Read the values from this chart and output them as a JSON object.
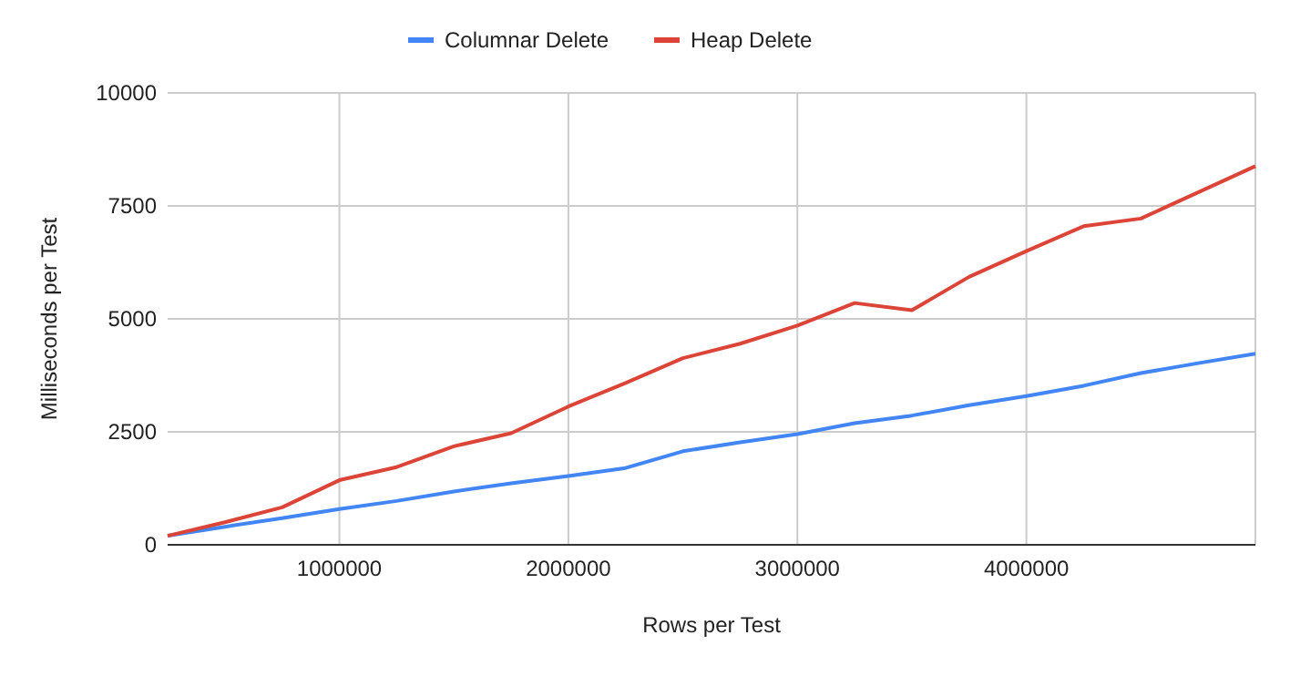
{
  "chart_data": {
    "type": "line",
    "xlabel": "Rows per Test",
    "ylabel": "Milliseconds per Test",
    "x": [
      250000,
      500000,
      750000,
      1000000,
      1250000,
      1500000,
      1750000,
      2000000,
      2250000,
      2500000,
      2750000,
      3000000,
      3250000,
      3500000,
      3750000,
      4000000,
      4250000,
      4500000,
      4750000,
      5000000
    ],
    "series": [
      {
        "name": "Columnar Delete",
        "color": "#4285f4",
        "values": [
          200,
          400,
          590,
          790,
          970,
          1180,
          1360,
          1520,
          1700,
          2070,
          2270,
          2450,
          2690,
          2860,
          3090,
          3290,
          3520,
          3800,
          4020,
          4230
        ]
      },
      {
        "name": "Heap Delete",
        "color": "#db4437",
        "values": [
          200,
          500,
          830,
          1430,
          1720,
          2180,
          2470,
          3060,
          3580,
          4130,
          4450,
          4850,
          5350,
          5190,
          5930,
          6500,
          7050,
          7220,
          7800,
          8380
        ]
      }
    ],
    "xlim": [
      250000,
      5000000
    ],
    "xticks": [
      1000000,
      2000000,
      3000000,
      4000000
    ],
    "ylim": [
      0,
      10000
    ],
    "yticks": [
      0,
      2500,
      5000,
      7500,
      10000
    ],
    "grid": true,
    "legend": "top",
    "marker": "none",
    "line_style": "solid"
  }
}
